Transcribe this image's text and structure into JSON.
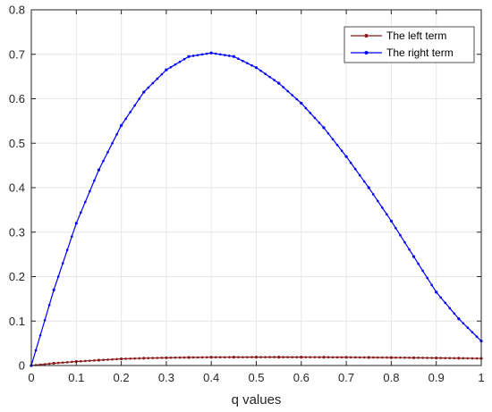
{
  "chart_data": {
    "type": "line",
    "title": "",
    "xlabel": "q values",
    "ylabel": "",
    "xlim": [
      0,
      1
    ],
    "ylim": [
      0,
      0.8
    ],
    "xticks": [
      "0",
      "0.1",
      "0.2",
      "0.3",
      "0.4",
      "0.5",
      "0.6",
      "0.7",
      "0.8",
      "0.9",
      "1"
    ],
    "yticks": [
      "0",
      "0.1",
      "0.2",
      "0.3",
      "0.4",
      "0.5",
      "0.6",
      "0.7",
      "0.8"
    ],
    "grid": true,
    "legend_position": "top-right",
    "x": [
      0.0,
      0.05,
      0.1,
      0.15,
      0.2,
      0.25,
      0.3,
      0.35,
      0.4,
      0.45,
      0.5,
      0.55,
      0.6,
      0.65,
      0.7,
      0.75,
      0.8,
      0.85,
      0.9,
      0.95,
      1.0
    ],
    "series": [
      {
        "name": "The left term",
        "color": "#8b1a1a",
        "values": [
          0.0,
          0.005,
          0.009,
          0.012,
          0.015,
          0.0165,
          0.0175,
          0.0182,
          0.0186,
          0.0188,
          0.0189,
          0.0189,
          0.0188,
          0.0187,
          0.0185,
          0.0182,
          0.0179,
          0.0175,
          0.017,
          0.0165,
          0.016
        ]
      },
      {
        "name": "The right term",
        "color": "#0000ff",
        "values": [
          0.0,
          0.17,
          0.32,
          0.44,
          0.54,
          0.615,
          0.665,
          0.695,
          0.703,
          0.695,
          0.67,
          0.635,
          0.59,
          0.535,
          0.47,
          0.4,
          0.325,
          0.245,
          0.165,
          0.105,
          0.055
        ]
      }
    ]
  }
}
